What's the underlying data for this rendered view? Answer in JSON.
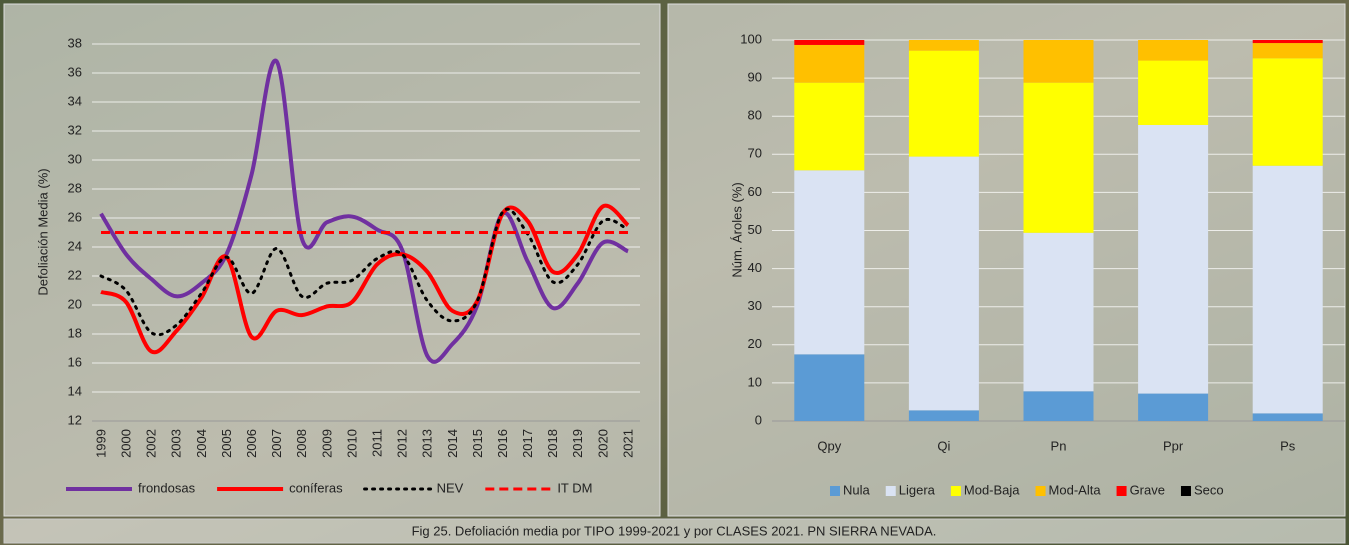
{
  "chart_data": [
    {
      "type": "line",
      "y_label": "Defoliación Media (%)",
      "categories": [
        "1999",
        "2000",
        "2002",
        "2003",
        "2004",
        "2005",
        "2006",
        "2007",
        "2008",
        "2009",
        "2010",
        "2011",
        "2012",
        "2013",
        "2014",
        "2015",
        "2016",
        "2017",
        "2018",
        "2019",
        "2020",
        "2021"
      ],
      "ylim": [
        12,
        38
      ],
      "yticks": [
        12,
        14,
        16,
        18,
        20,
        22,
        24,
        26,
        28,
        30,
        32,
        34,
        36,
        38
      ],
      "grid": true,
      "legend": "bottom",
      "series": [
        {
          "name": "frondosas",
          "color": "#7030a0",
          "line_style": "solid",
          "values": [
            26.3,
            23.5,
            21.8,
            20.6,
            21.5,
            23.5,
            29,
            36.8,
            24.6,
            25.7,
            26.1,
            25.2,
            23.8,
            16.5,
            17.3,
            20,
            26.3,
            23,
            19.8,
            21.5,
            24.3,
            23.7
          ]
        },
        {
          "name": "coníferas",
          "color": "#ff0000",
          "line_style": "solid",
          "values": [
            20.9,
            20.2,
            16.8,
            18.2,
            20.5,
            23.3,
            17.8,
            19.6,
            19.3,
            19.9,
            20.2,
            22.8,
            23.5,
            22.3,
            19.6,
            20.3,
            26.3,
            25.8,
            22.3,
            23.5,
            26.8,
            25.5
          ]
        },
        {
          "name": "NEV",
          "color": "#000000",
          "line_style": "dotted",
          "values": [
            22,
            21,
            18.1,
            18.6,
            20.8,
            23.3,
            20.8,
            23.9,
            20.6,
            21.5,
            21.7,
            23.2,
            23.5,
            20.3,
            18.9,
            20.3,
            26.4,
            24.9,
            21.6,
            22.8,
            25.8,
            25.2
          ]
        },
        {
          "name": "IT DM",
          "color": "#ff0000",
          "line_style": "dashed",
          "values": [
            25,
            25,
            25,
            25,
            25,
            25,
            25,
            25,
            25,
            25,
            25,
            25,
            25,
            25,
            25,
            25,
            25,
            25,
            25,
            25,
            25,
            25
          ]
        }
      ]
    },
    {
      "type": "stacked_bar",
      "y_label": "Núm. Ároles (%)",
      "categories": [
        "Qpy",
        "Qi",
        "Pn",
        "Ppr",
        "Ps"
      ],
      "ylim": [
        0,
        100
      ],
      "yticks": [
        0,
        10,
        20,
        30,
        40,
        50,
        60,
        70,
        80,
        90,
        100
      ],
      "grid": true,
      "legend": "bottom",
      "series": [
        {
          "name": "Nula",
          "color": "#5b9bd5",
          "values": [
            17.5,
            2.8,
            7.8,
            7.2,
            2
          ]
        },
        {
          "name": "Ligera",
          "color": "#dae3f3",
          "values": [
            48.3,
            66.6,
            41.6,
            70.5,
            65
          ]
        },
        {
          "name": "Mod-Baja",
          "color": "#ffff00",
          "values": [
            23,
            27.8,
            39.4,
            16.9,
            28.2
          ]
        },
        {
          "name": "Mod-Alta",
          "color": "#ffc000",
          "values": [
            9.9,
            2.8,
            11.2,
            5.4,
            4
          ]
        },
        {
          "name": "Grave",
          "color": "#ff0000",
          "values": [
            1.3,
            0,
            0,
            0,
            0.8
          ]
        },
        {
          "name": "Seco",
          "color": "#000000",
          "values": [
            0,
            0,
            0,
            0,
            0
          ]
        }
      ]
    }
  ],
  "caption": "Fig 25. Defoliación media por TIPO 1999-2021 y por CLASES 2021. PN SIERRA NEVADA."
}
